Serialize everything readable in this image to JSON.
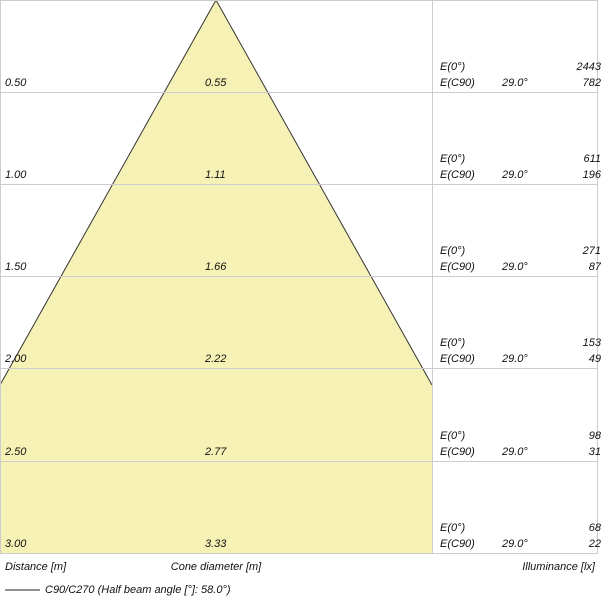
{
  "rows": [
    {
      "distance": "0.50",
      "diameter": "0.55",
      "e0_label": "E(0°)",
      "e0_value": "2443",
      "ec90_label": "E(C90)",
      "angle": "29.0°",
      "ec90_value": "782"
    },
    {
      "distance": "1.00",
      "diameter": "1.11",
      "e0_label": "E(0°)",
      "e0_value": "611",
      "ec90_label": "E(C90)",
      "angle": "29.0°",
      "ec90_value": "196"
    },
    {
      "distance": "1.50",
      "diameter": "1.66",
      "e0_label": "E(0°)",
      "e0_value": "271",
      "ec90_label": "E(C90)",
      "angle": "29.0°",
      "ec90_value": "87"
    },
    {
      "distance": "2.00",
      "diameter": "2.22",
      "e0_label": "E(0°)",
      "e0_value": "153",
      "ec90_label": "E(C90)",
      "angle": "29.0°",
      "ec90_value": "49"
    },
    {
      "distance": "2.50",
      "diameter": "2.77",
      "e0_label": "E(0°)",
      "e0_value": "98",
      "ec90_label": "E(C90)",
      "angle": "29.0°",
      "ec90_value": "31"
    },
    {
      "distance": "3.00",
      "diameter": "3.33",
      "e0_label": "E(0°)",
      "e0_value": "68",
      "ec90_label": "E(C90)",
      "angle": "29.0°",
      "ec90_value": "22"
    }
  ],
  "footer": {
    "distance": "Distance [m]",
    "diameter": "Cone diameter [m]",
    "illuminance": "Illuminance [lx]"
  },
  "legend": {
    "label": "C90/C270 (Half beam angle [°]: 58.0°)"
  }
}
